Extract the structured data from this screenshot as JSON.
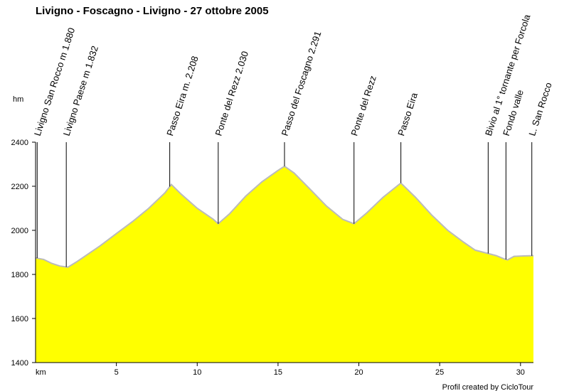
{
  "chart_data": {
    "type": "area",
    "title": "Livigno - Foscagno - Livigno - 27 ottobre 2005",
    "ylabel": "hm",
    "xlabel": "km",
    "credit": "Profil created by CicloTour",
    "xlim": [
      0,
      30.8
    ],
    "ylim": [
      1400,
      2400
    ],
    "x_ticks": [
      5,
      10,
      15,
      20,
      25,
      30
    ],
    "y_ticks": [
      1400,
      1600,
      1800,
      2000,
      2200,
      2400
    ],
    "fill_color": "#ffff00",
    "line_color": "#bbbbbb",
    "profile": {
      "x": [
        0,
        0.5,
        1.0,
        1.5,
        2.0,
        2.5,
        3.0,
        4.0,
        5.0,
        6.0,
        7.0,
        8.0,
        8.4,
        9.0,
        10.0,
        11.0,
        11.3,
        12.0,
        13.0,
        14.0,
        15.0,
        15.4,
        16.0,
        17.0,
        18.0,
        19.0,
        19.7,
        20.5,
        21.5,
        22.6,
        23.5,
        24.5,
        25.5,
        26.5,
        27.2,
        28.0,
        28.5,
        29.0,
        29.2,
        29.6,
        30.2,
        30.8
      ],
      "y": [
        1875,
        1868,
        1850,
        1838,
        1833,
        1855,
        1880,
        1930,
        1985,
        2040,
        2100,
        2170,
        2208,
        2165,
        2100,
        2050,
        2030,
        2075,
        2155,
        2220,
        2272,
        2291,
        2260,
        2185,
        2110,
        2050,
        2030,
        2080,
        2150,
        2215,
        2150,
        2070,
        2000,
        1945,
        1910,
        1895,
        1885,
        1870,
        1866,
        1882,
        1884,
        1885
      ]
    },
    "waypoints": [
      {
        "km": 0.1,
        "label": "Livigno San Rocco m 1.880"
      },
      {
        "km": 1.9,
        "label": "Livigno Paese m 1.832"
      },
      {
        "km": 8.3,
        "label": "Passo Eira m. 2.208"
      },
      {
        "km": 11.3,
        "label": "Ponte del Rezz 2.030"
      },
      {
        "km": 15.4,
        "label": "Passo del Foscagno 2.291"
      },
      {
        "km": 19.7,
        "label": "Ponte del Rezz"
      },
      {
        "km": 22.6,
        "label": "Passo Eira"
      },
      {
        "km": 28.0,
        "label": "Bivio al 1° tornante per Forcola"
      },
      {
        "km": 29.1,
        "label": "Fondo valle"
      },
      {
        "km": 30.7,
        "label": "L. San Rocco"
      }
    ]
  }
}
